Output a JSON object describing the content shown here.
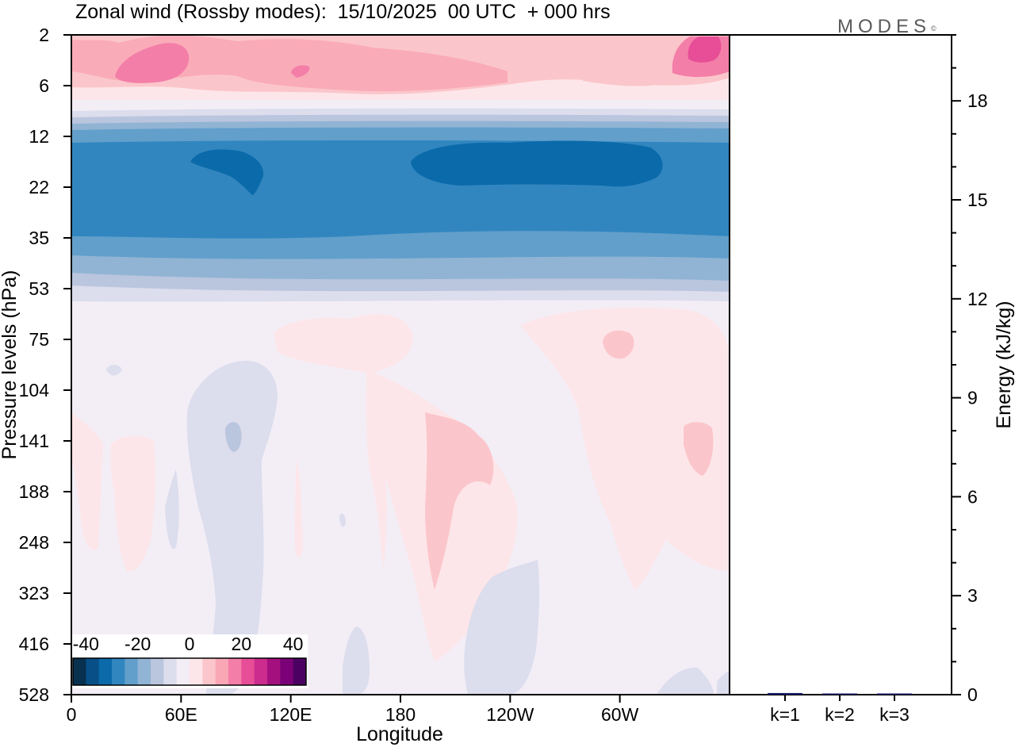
{
  "title": "Zonal wind (Rossby modes):  15/10/2025  00 UTC  + 000 hrs",
  "logo": "MODES",
  "logo_mark": "©",
  "chart_data": [
    {
      "type": "heatmap",
      "title": "Zonal wind (Rossby modes):  15/10/2025  00 UTC  + 000 hrs",
      "xlabel": "Longitude",
      "ylabel": "Pressure levels (hPa)",
      "x_ticks": [
        "0",
        "60E",
        "120E",
        "180",
        "120W",
        "60W"
      ],
      "y_ticks": [
        "2",
        "6",
        "12",
        "22",
        "35",
        "53",
        "75",
        "104",
        "141",
        "188",
        "248",
        "323",
        "416",
        "528"
      ],
      "y_scale": "log",
      "x_range": [
        "0",
        "360"
      ],
      "colorbar": {
        "labels": [
          "-40",
          "-20",
          "0",
          "20",
          "40"
        ],
        "range": [
          -45,
          45
        ],
        "step": 5,
        "colors": [
          "#08304f",
          "#084f87",
          "#0b6aaa",
          "#3186bf",
          "#629fcb",
          "#91b4d4",
          "#bac5de",
          "#dcdded",
          "#f3eef6",
          "#fde6e9",
          "#fbc6cb",
          "#f9a6b5",
          "#f37ea8",
          "#e84d97",
          "#cc2c8d",
          "#a5107f",
          "#7a0177",
          "#4b0062"
        ]
      },
      "bands": [
        {
          "from": "2",
          "to": "6",
          "value_range": [
            5,
            25
          ],
          "note_values": "positive"
        },
        {
          "from": "12",
          "to": "35",
          "value_range": [
            -30,
            -20
          ]
        },
        {
          "from": "35",
          "to": "53",
          "value_range": [
            -20,
            -5
          ]
        },
        {
          "from": "75",
          "to": "528",
          "value_range": [
            -5,
            5
          ]
        }
      ]
    },
    {
      "type": "bar",
      "ylabel": "Energy (kJ/kg)",
      "categories": [
        "k=1",
        "k=2",
        "k=3"
      ],
      "values": [
        0.05,
        0.02,
        0.01
      ],
      "y_ticks": [
        "0",
        "3",
        "6",
        "9",
        "12",
        "15",
        "18"
      ],
      "ylim": [
        0,
        20
      ],
      "bar_color": "#1a1a6e"
    }
  ]
}
